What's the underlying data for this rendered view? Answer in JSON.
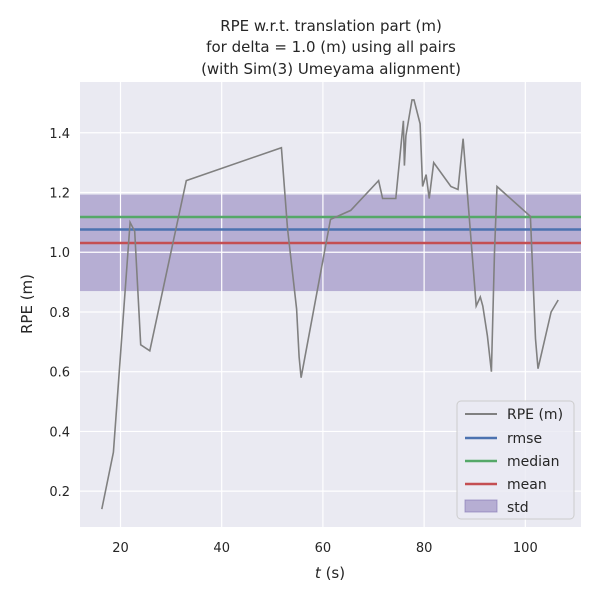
{
  "chart_data": {
    "type": "line",
    "title_lines": [
      "RPE w.r.t. translation part (m)",
      "for delta = 1.0 (m) using all pairs",
      "(with Sim(3) Umeyama alignment)"
    ],
    "xlabel_italic": "t",
    "xlabel_rest": " (s)",
    "ylabel": "RPE (m)",
    "xlim": [
      12,
      111
    ],
    "ylim": [
      0.08,
      1.57
    ],
    "xticks": [
      20,
      40,
      60,
      80,
      100
    ],
    "yticks": [
      0.2,
      0.4,
      0.6,
      0.8,
      1.0,
      1.2,
      1.4
    ],
    "grid": true,
    "legend_position": "lower-right",
    "series": [
      {
        "name": "RPE (m)",
        "color": "#808080",
        "x": [
          16.3,
          18.6,
          21.9,
          22.8,
          24.0,
          25.8,
          33.0,
          51.8,
          53.0,
          54.8,
          55.3,
          55.7,
          61.5,
          65.5,
          71.0,
          71.8,
          74.4,
          75.9,
          76.1,
          76.4,
          77.6,
          78.0,
          79.2,
          79.7,
          80.4,
          81.0,
          81.9,
          85.3,
          86.7,
          87.7,
          90.3,
          91.1,
          91.6,
          92.5,
          93.3,
          93.9,
          94.4,
          101.0,
          102.0,
          102.5,
          105.1,
          106.5
        ],
        "y": [
          0.14,
          0.33,
          1.1,
          1.07,
          0.69,
          0.67,
          1.24,
          1.35,
          1.08,
          0.81,
          0.65,
          0.58,
          1.11,
          1.14,
          1.24,
          1.18,
          1.18,
          1.44,
          1.29,
          1.39,
          1.51,
          1.51,
          1.43,
          1.22,
          1.26,
          1.18,
          1.3,
          1.22,
          1.21,
          1.38,
          0.82,
          0.85,
          0.82,
          0.72,
          0.6,
          1.0,
          1.22,
          1.12,
          0.71,
          0.61,
          0.8,
          0.84
        ]
      },
      {
        "name": "rmse",
        "color": "#4c72b0",
        "value": 1.076
      },
      {
        "name": "median",
        "color": "#55a868",
        "value": 1.118
      },
      {
        "name": "mean",
        "color": "#c44e52",
        "value": 1.031
      },
      {
        "name": "std",
        "color": "#8172b3",
        "band": [
          0.87,
          1.193
        ]
      }
    ],
    "background": "#eaeaf2",
    "grid_color": "#ffffff"
  }
}
